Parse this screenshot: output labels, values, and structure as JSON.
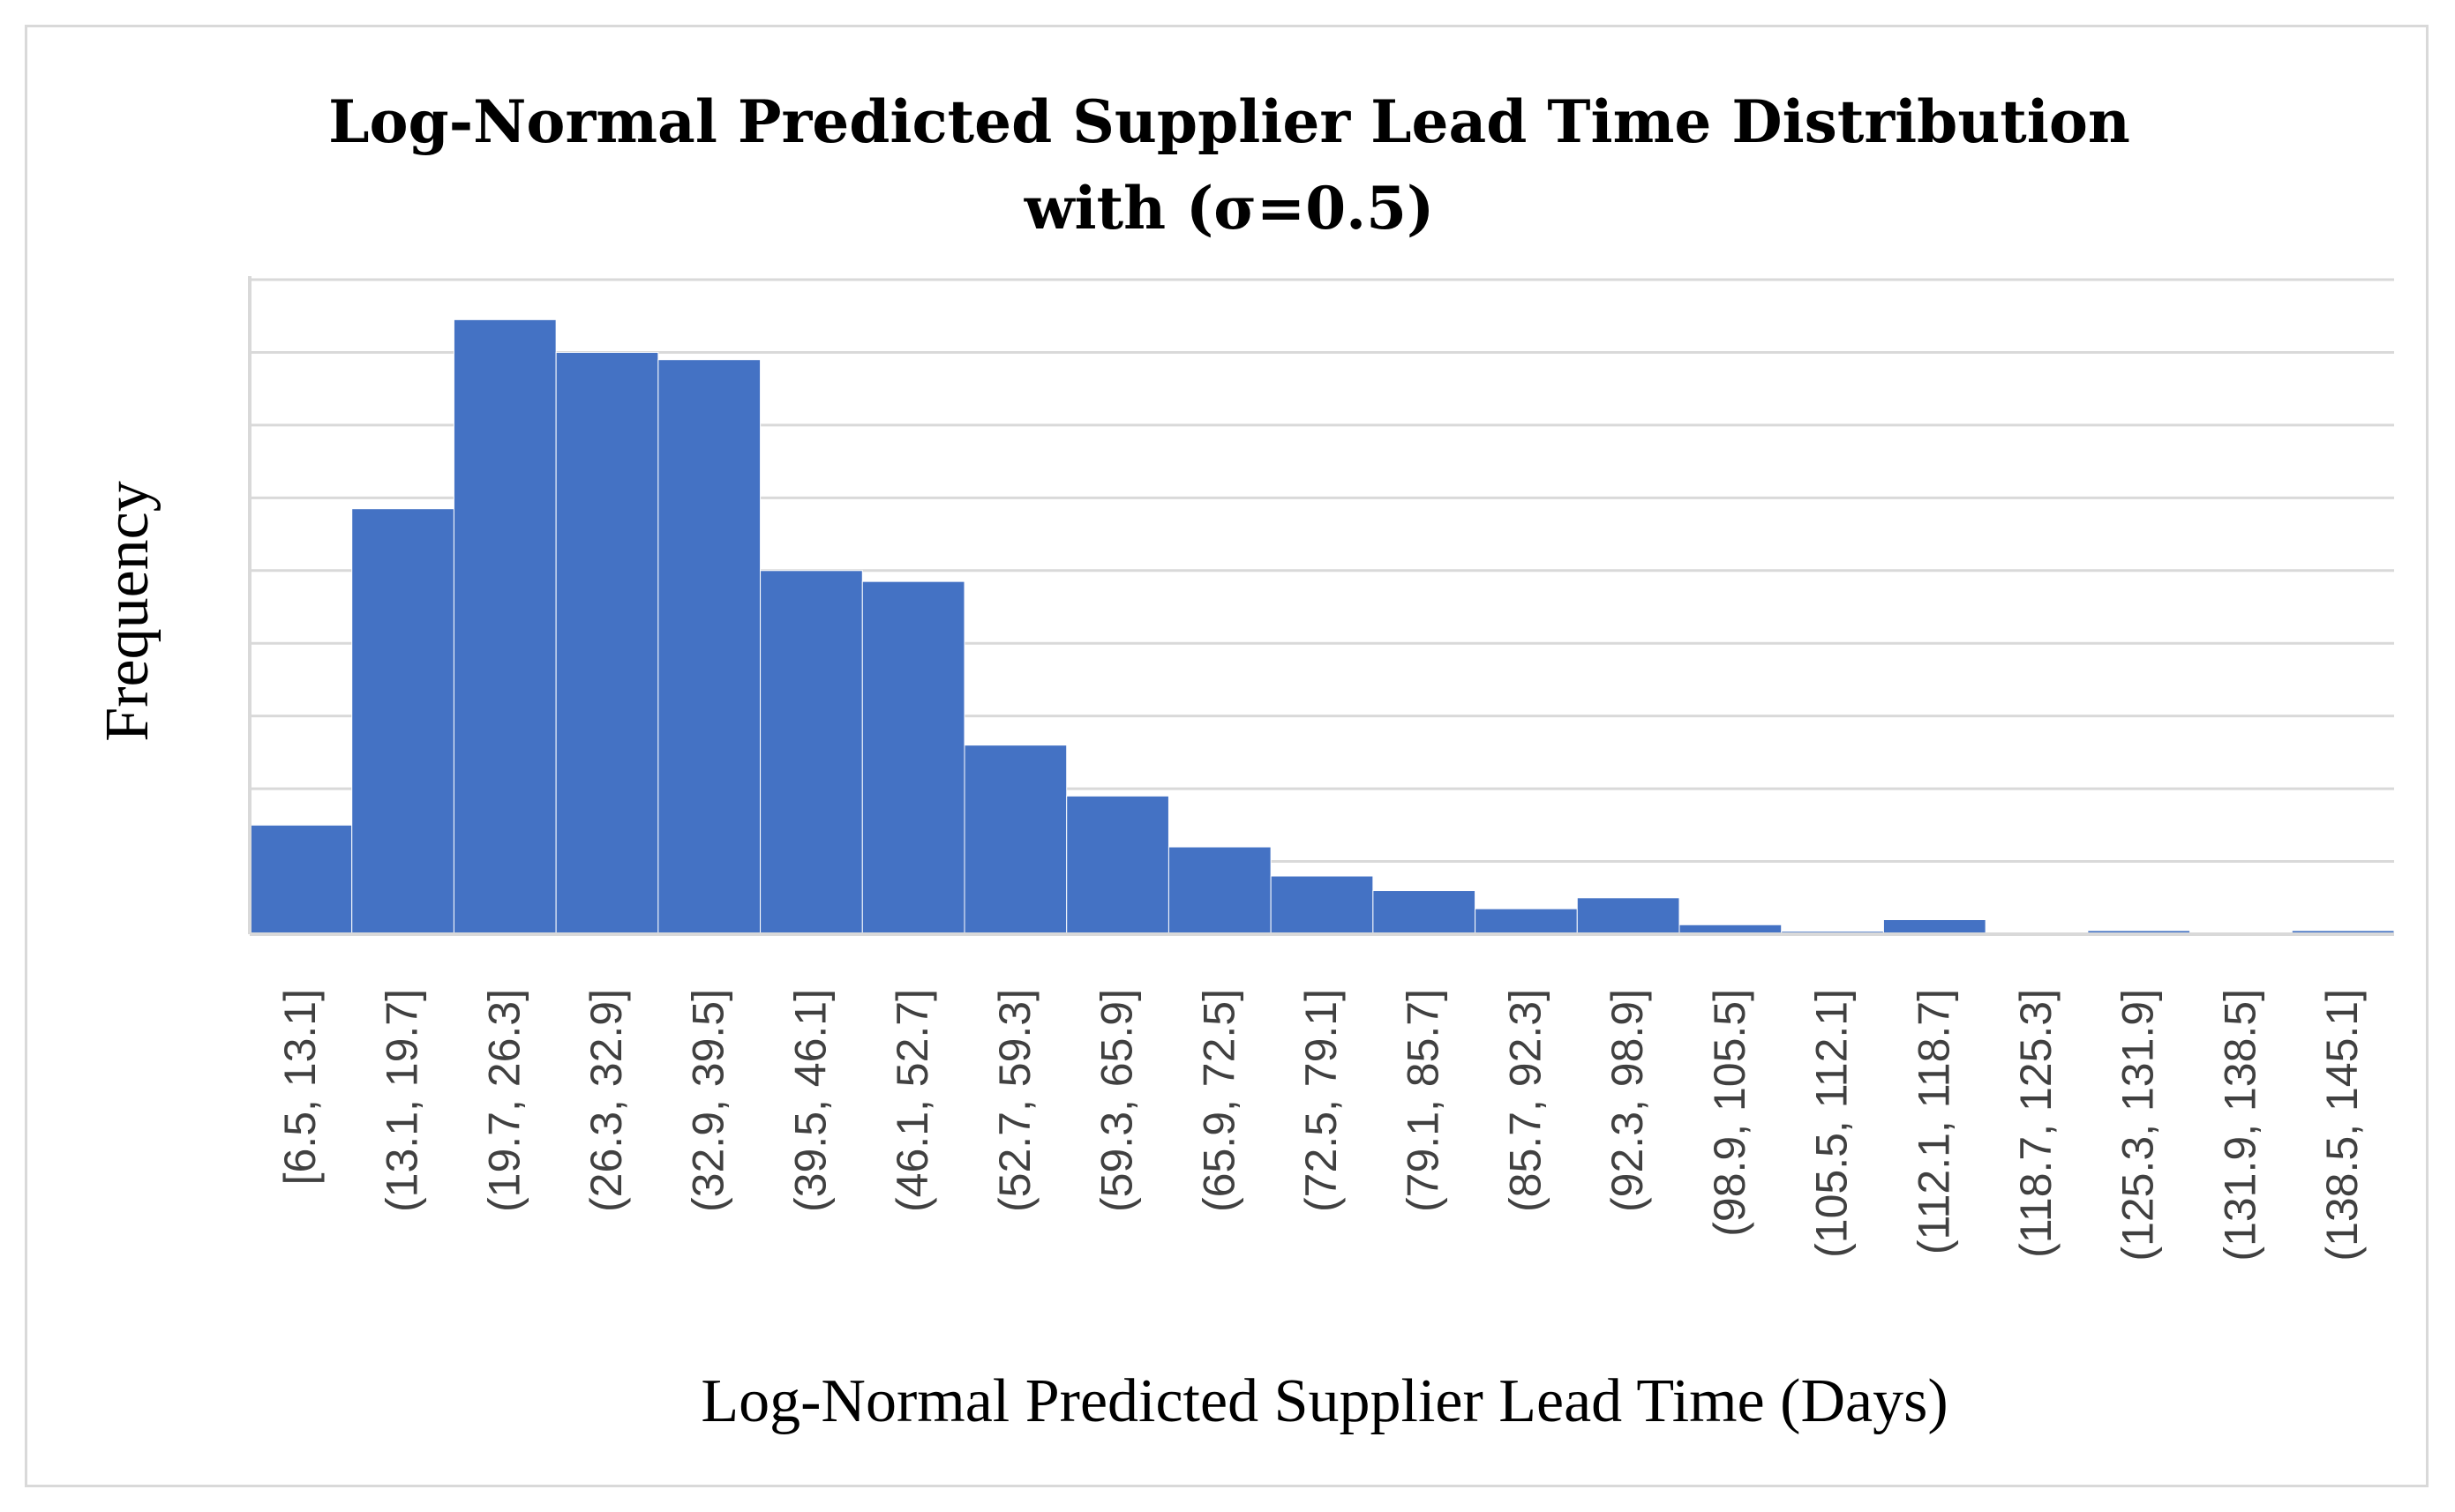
{
  "chart_data": {
    "type": "bar",
    "title": "Log-Normal Predicted Supplier Lead Time Distribution",
    "subtitle": "with (σ=0.5)",
    "xlabel": "Log-Normal Predicted Supplier Lead Time (Days)",
    "ylabel": "Frequency",
    "ylim": [
      0,
      9
    ],
    "grid": true,
    "bar_color": "#4472C4",
    "categories": [
      "[6.5, 13.1]",
      "(13.1, 19.7]",
      "(19.7, 26.3]",
      "(26.3, 32.9]",
      "(32.9, 39.5]",
      "(39.5, 46.1]",
      "(46.1, 52.7]",
      "(52.7, 59.3]",
      "(59.3, 65.9]",
      "(65.9, 72.5]",
      "(72.5, 79.1]",
      "(79.1, 85.7]",
      "(85.7, 92.3]",
      "(92.3, 98.9]",
      "(98.9, 105.5]",
      "(105.5, 112.1]",
      "(112.1, 118.7]",
      "(118.7, 125.3]",
      "(125.3, 131.9]",
      "(131.9, 138.5]",
      "(138.5, 145.1]"
    ],
    "values": [
      1.5,
      5.85,
      8.45,
      8.0,
      7.9,
      5.0,
      4.85,
      2.6,
      1.9,
      1.2,
      0.8,
      0.6,
      0.35,
      0.5,
      0.13,
      0.04,
      0.2,
      0.01,
      0.05,
      0.01,
      0.05
    ]
  }
}
